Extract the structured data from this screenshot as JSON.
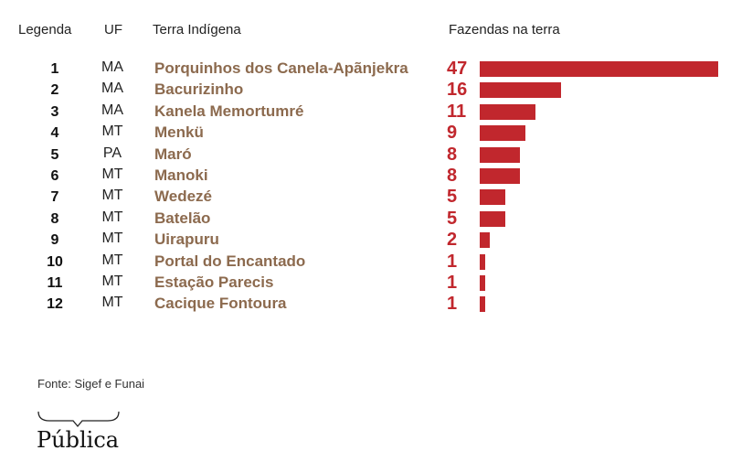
{
  "headers": {
    "legend": "Legenda",
    "uf": "UF",
    "terra": "Terra Indígena",
    "fazendas": "Fazendas na terra"
  },
  "colors": {
    "bar": "#c1272d",
    "name": "#8c6a4e"
  },
  "chart_data": {
    "type": "bar",
    "orientation": "horizontal",
    "title": "",
    "xlabel": "Fazendas na terra",
    "ylabel": "Terra Indígena",
    "xlim": [
      0,
      47
    ],
    "categories": [
      "Porquinhos dos Canela-Apãnjekra",
      "Bacurizinho",
      "Kanela Memortumré",
      "Menkü",
      "Maró",
      "Manoki",
      "Wedezé",
      "Batelão",
      "Uirapuru",
      "Portal do Encantado",
      "Estação Parecis",
      "Cacique Fontoura"
    ],
    "rows": [
      {
        "legend": "1",
        "uf": "MA",
        "name": "Porquinhos dos Canela-Apãnjekra",
        "value": 47
      },
      {
        "legend": "2",
        "uf": "MA",
        "name": "Bacurizinho",
        "value": 16
      },
      {
        "legend": "3",
        "uf": "MA",
        "name": "Kanela Memortumré",
        "value": 11
      },
      {
        "legend": "4",
        "uf": "MT",
        "name": "Menkü",
        "value": 9
      },
      {
        "legend": "5",
        "uf": "PA",
        "name": "Maró",
        "value": 8
      },
      {
        "legend": "6",
        "uf": "MT",
        "name": "Manoki",
        "value": 8
      },
      {
        "legend": "7",
        "uf": "MT",
        "name": "Wedezé",
        "value": 5
      },
      {
        "legend": "8",
        "uf": "MT",
        "name": "Batelão",
        "value": 5
      },
      {
        "legend": "9",
        "uf": "MT",
        "name": "Uirapuru",
        "value": 2
      },
      {
        "legend": "10",
        "uf": "MT",
        "name": "Portal do Encantado",
        "value": 1
      },
      {
        "legend": "11",
        "uf": "MT",
        "name": "Estação Parecis",
        "value": 1
      },
      {
        "legend": "12",
        "uf": "MT",
        "name": "Cacique Fontoura",
        "value": 1
      }
    ]
  },
  "source": "Fonte: Sigef e Funai",
  "logo": "Pública"
}
